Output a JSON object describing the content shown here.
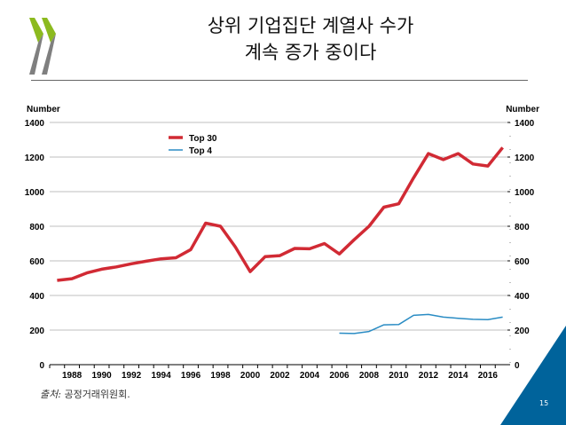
{
  "header": {
    "title_line1": "상위 기업집단 계열사 수가",
    "title_line2": "계속 증가 중이다"
  },
  "footer": {
    "source_label": "출처:",
    "source_text": " 공정거래위원회.",
    "page_number": "15"
  },
  "colors": {
    "top30": "#d12a34",
    "top4": "#2a8cc4",
    "accent": "#00639b",
    "logo_green": "#8cba1f",
    "logo_gray": "#7f7f7f"
  },
  "chart_data": {
    "type": "line",
    "title": "",
    "ylabel_left": "Number",
    "ylabel_right": "Number",
    "ylim": [
      0,
      1400
    ],
    "yticks": [
      0,
      200,
      400,
      600,
      800,
      1000,
      1200,
      1400
    ],
    "xtick_labels": [
      "1988",
      "1990",
      "1992",
      "1994",
      "1996",
      "1998",
      "2000",
      "2002",
      "2004",
      "2006",
      "2008",
      "2010",
      "2012",
      "2014",
      "2016"
    ],
    "x": [
      1987,
      1988,
      1989,
      1990,
      1991,
      1992,
      1993,
      1994,
      1995,
      1996,
      1997,
      1998,
      1999,
      2000,
      2001,
      2002,
      2003,
      2004,
      2005,
      2006,
      2007,
      2008,
      2009,
      2010,
      2011,
      2012,
      2013,
      2014,
      2015,
      2016,
      2017
    ],
    "grid": true,
    "legend_position": "top-center",
    "series": [
      {
        "name": "Top 30",
        "values": [
          487,
          497,
          530,
          552,
          565,
          583,
          598,
          612,
          618,
          665,
          818,
          800,
          680,
          538,
          624,
          630,
          672,
          670,
          700,
          640,
          722,
          800,
          910,
          930,
          1080,
          1220,
          1185,
          1220,
          1160,
          1148,
          1255
        ]
      },
      {
        "name": "Top 4",
        "values": [
          null,
          null,
          null,
          null,
          null,
          null,
          null,
          null,
          null,
          null,
          null,
          null,
          null,
          null,
          null,
          null,
          null,
          null,
          null,
          182,
          180,
          192,
          230,
          232,
          285,
          290,
          275,
          268,
          262,
          260,
          275
        ]
      }
    ]
  }
}
